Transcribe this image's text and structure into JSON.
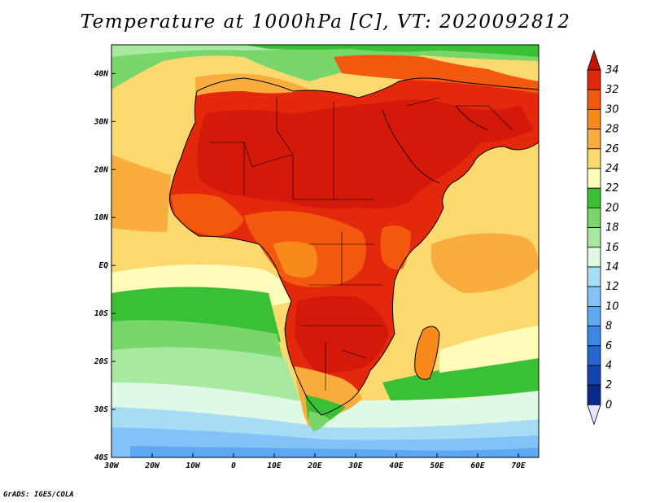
{
  "title": "Temperature at 1000hPa [C], VT: 2020092812",
  "credit": "GrADS: IGES/COLA",
  "map": {
    "projection": "latlon",
    "lon_range": [
      -30,
      75
    ],
    "lat_range": [
      -40,
      46
    ],
    "x_ticks": [
      "30W",
      "20W",
      "10W",
      "0",
      "10E",
      "20E",
      "30E",
      "40E",
      "50E",
      "60E",
      "70E"
    ],
    "y_ticks": [
      "40N",
      "30N",
      "20N",
      "10N",
      "EQ",
      "10S",
      "20S",
      "30S",
      "40S"
    ],
    "ocean_color": "#fbd96f",
    "land_color": "#e3280c"
  },
  "colorbar": {
    "labels": [
      "34",
      "32",
      "30",
      "28",
      "26",
      "24",
      "22",
      "20",
      "18",
      "16",
      "14",
      "12",
      "10",
      "8",
      "6",
      "4",
      "2",
      "0"
    ],
    "colors": [
      "#c1150a",
      "#e3280c",
      "#f2580e",
      "#f88a1b",
      "#f9ad3e",
      "#fbd96f",
      "#fefcb9",
      "#39c034",
      "#78d66a",
      "#a8e9a2",
      "#e0f8e6",
      "#a6dcf6",
      "#83c2f6",
      "#5ea8f3",
      "#3b86e6",
      "#2564d1",
      "#1543b2",
      "#0a2a8a",
      "#061b5a"
    ]
  }
}
